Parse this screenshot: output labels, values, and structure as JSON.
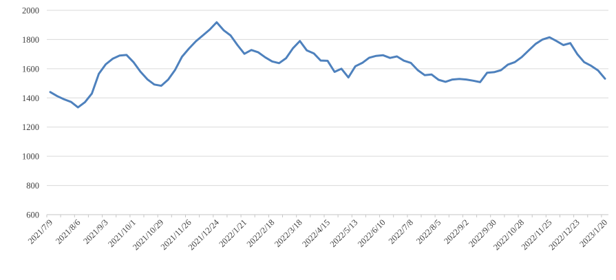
{
  "chart_data": {
    "type": "line",
    "title": "",
    "legend": "none",
    "grid": "horizontal",
    "x_interval": "weekly",
    "label_every": 4,
    "x_tick_labels": [
      "2021/7/9",
      "2021/8/6",
      "2021/9/3",
      "2021/10/1",
      "2021/10/29",
      "2021/11/26",
      "2021/12/24",
      "2022/1/21",
      "2022/2/18",
      "2022/3/18",
      "2022/4/15",
      "2022/5/13",
      "2022/6/10",
      "2022/7/8",
      "2022/8/5",
      "2022/9/2",
      "2022/9/30",
      "2022/10/28",
      "2022/11/25",
      "2022/12/23",
      "2023/1/20"
    ],
    "values": [
      1440,
      1412,
      1390,
      1372,
      1335,
      1370,
      1430,
      1565,
      1630,
      1668,
      1690,
      1694,
      1645,
      1580,
      1527,
      1492,
      1483,
      1525,
      1592,
      1682,
      1738,
      1788,
      1828,
      1868,
      1918,
      1864,
      1828,
      1762,
      1702,
      1728,
      1712,
      1678,
      1650,
      1638,
      1672,
      1740,
      1790,
      1725,
      1705,
      1656,
      1654,
      1578,
      1600,
      1540,
      1617,
      1640,
      1675,
      1688,
      1692,
      1674,
      1684,
      1655,
      1640,
      1590,
      1556,
      1560,
      1524,
      1510,
      1526,
      1530,
      1526,
      1518,
      1508,
      1572,
      1576,
      1590,
      1628,
      1645,
      1680,
      1725,
      1770,
      1800,
      1815,
      1790,
      1762,
      1775,
      1700,
      1645,
      1620,
      1588,
      1532
    ],
    "y_ticks": [
      600,
      800,
      1000,
      1200,
      1400,
      1600,
      1800,
      2000
    ],
    "ylim": [
      600,
      2000
    ],
    "colors": {
      "line": "#4E81BD",
      "gridline": "#D9D9D9",
      "axis": "#C6C6C6",
      "label": "#404040"
    }
  }
}
